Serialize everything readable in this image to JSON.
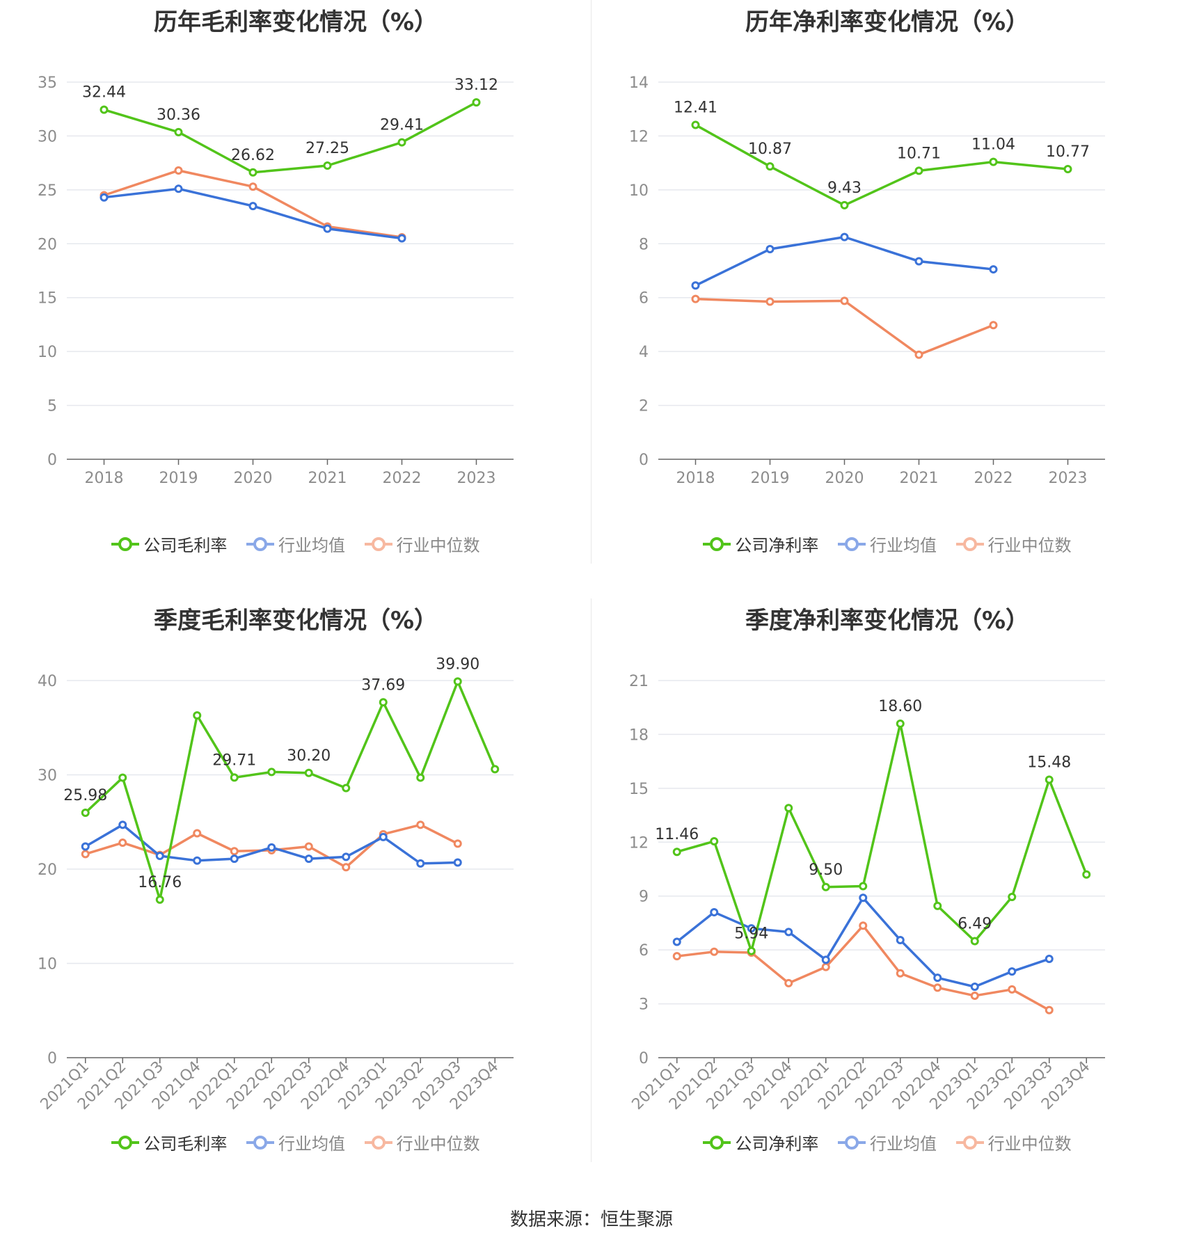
{
  "colors": {
    "company": "#52c41a",
    "avg": "#3a72d8",
    "median": "#f08860",
    "grid": "#e6e8ee",
    "axis": "#666666",
    "tick": "#8c8c8c"
  },
  "source": "数据来源：恒生聚源",
  "charts": [
    {
      "title": "历年毛利率变化情况（%）",
      "chart_data": {
        "type": "line",
        "categories": [
          "2018",
          "2019",
          "2020",
          "2021",
          "2022",
          "2023"
        ],
        "yticks": [
          0,
          5,
          10,
          15,
          20,
          25,
          30,
          35
        ],
        "ylim": [
          0,
          35
        ],
        "grid": true,
        "legend_position": "bottom",
        "series": [
          {
            "name": "公司毛利率",
            "values": [
              32.44,
              30.36,
              26.62,
              27.25,
              29.41,
              33.12
            ]
          },
          {
            "name": "行业均值",
            "values": [
              24.3,
              25.1,
              23.5,
              21.4,
              20.5,
              null
            ]
          },
          {
            "name": "行业中位数",
            "values": [
              24.5,
              26.8,
              25.3,
              21.6,
              20.6,
              null
            ]
          }
        ],
        "data_labels": [
          "32.44",
          "30.36",
          "26.62",
          "27.25",
          "29.41",
          "33.12"
        ]
      }
    },
    {
      "title": "历年净利率变化情况（%）",
      "chart_data": {
        "type": "line",
        "categories": [
          "2018",
          "2019",
          "2020",
          "2021",
          "2022",
          "2023"
        ],
        "yticks": [
          0,
          2,
          4,
          6,
          8,
          10,
          12,
          14
        ],
        "ylim": [
          0,
          14
        ],
        "grid": true,
        "legend_position": "bottom",
        "series": [
          {
            "name": "公司净利率",
            "values": [
              12.41,
              10.87,
              9.43,
              10.71,
              11.04,
              10.77
            ]
          },
          {
            "name": "行业均值",
            "values": [
              6.45,
              7.8,
              8.25,
              7.35,
              7.05,
              null
            ]
          },
          {
            "name": "行业中位数",
            "values": [
              5.95,
              5.85,
              5.88,
              3.88,
              4.98,
              null
            ]
          }
        ],
        "data_labels": [
          "12.41",
          "10.87",
          "9.43",
          "10.71",
          "11.04",
          "10.77"
        ]
      }
    },
    {
      "title": "季度毛利率变化情况（%）",
      "chart_data": {
        "type": "line",
        "categories": [
          "2021Q1",
          "2021Q2",
          "2021Q3",
          "2021Q4",
          "2022Q1",
          "2022Q2",
          "2022Q3",
          "2022Q4",
          "2023Q1",
          "2023Q2",
          "2023Q3",
          "2023Q4"
        ],
        "yticks": [
          0,
          10,
          20,
          30,
          40
        ],
        "ylim": [
          0,
          40
        ],
        "grid": true,
        "legend_position": "bottom",
        "series": [
          {
            "name": "公司毛利率",
            "values": [
              25.98,
              29.7,
              16.76,
              36.3,
              29.71,
              30.3,
              30.2,
              28.6,
              37.69,
              29.7,
              39.9,
              30.6
            ]
          },
          {
            "name": "行业均值",
            "values": [
              22.4,
              24.7,
              21.4,
              20.9,
              21.1,
              22.3,
              21.1,
              21.3,
              23.4,
              20.6,
              20.7,
              null
            ]
          },
          {
            "name": "行业中位数",
            "values": [
              21.6,
              22.8,
              21.5,
              23.8,
              21.9,
              22.0,
              22.4,
              20.2,
              23.7,
              24.7,
              22.7,
              null
            ]
          }
        ],
        "data_labels": [
          "25.98",
          null,
          "16.76",
          null,
          "29.71",
          null,
          "30.20",
          null,
          "37.69",
          null,
          "39.90",
          null
        ]
      }
    },
    {
      "title": "季度净利率变化情况（%）",
      "chart_data": {
        "type": "line",
        "categories": [
          "2021Q1",
          "2021Q2",
          "2021Q3",
          "2021Q4",
          "2022Q1",
          "2022Q2",
          "2022Q3",
          "2022Q4",
          "2023Q1",
          "2023Q2",
          "2023Q3",
          "2023Q4"
        ],
        "yticks": [
          0,
          3,
          6,
          9,
          12,
          15,
          18,
          21
        ],
        "ylim": [
          0,
          21
        ],
        "grid": true,
        "legend_position": "bottom",
        "series": [
          {
            "name": "公司净利率",
            "values": [
              11.46,
              12.05,
              5.94,
              13.9,
              9.5,
              9.55,
              18.6,
              8.45,
              6.49,
              8.95,
              15.48,
              10.2
            ]
          },
          {
            "name": "行业均值",
            "values": [
              6.45,
              8.1,
              7.2,
              7.0,
              5.45,
              8.9,
              6.55,
              4.45,
              3.95,
              4.8,
              5.5,
              null
            ]
          },
          {
            "name": "行业中位数",
            "values": [
              5.65,
              5.9,
              5.85,
              4.15,
              5.05,
              7.35,
              4.7,
              3.9,
              3.45,
              3.8,
              2.65,
              null
            ]
          }
        ],
        "data_labels": [
          "11.46",
          null,
          "5.94",
          null,
          "9.50",
          null,
          "18.60",
          null,
          "6.49",
          null,
          "15.48",
          null
        ]
      }
    }
  ]
}
